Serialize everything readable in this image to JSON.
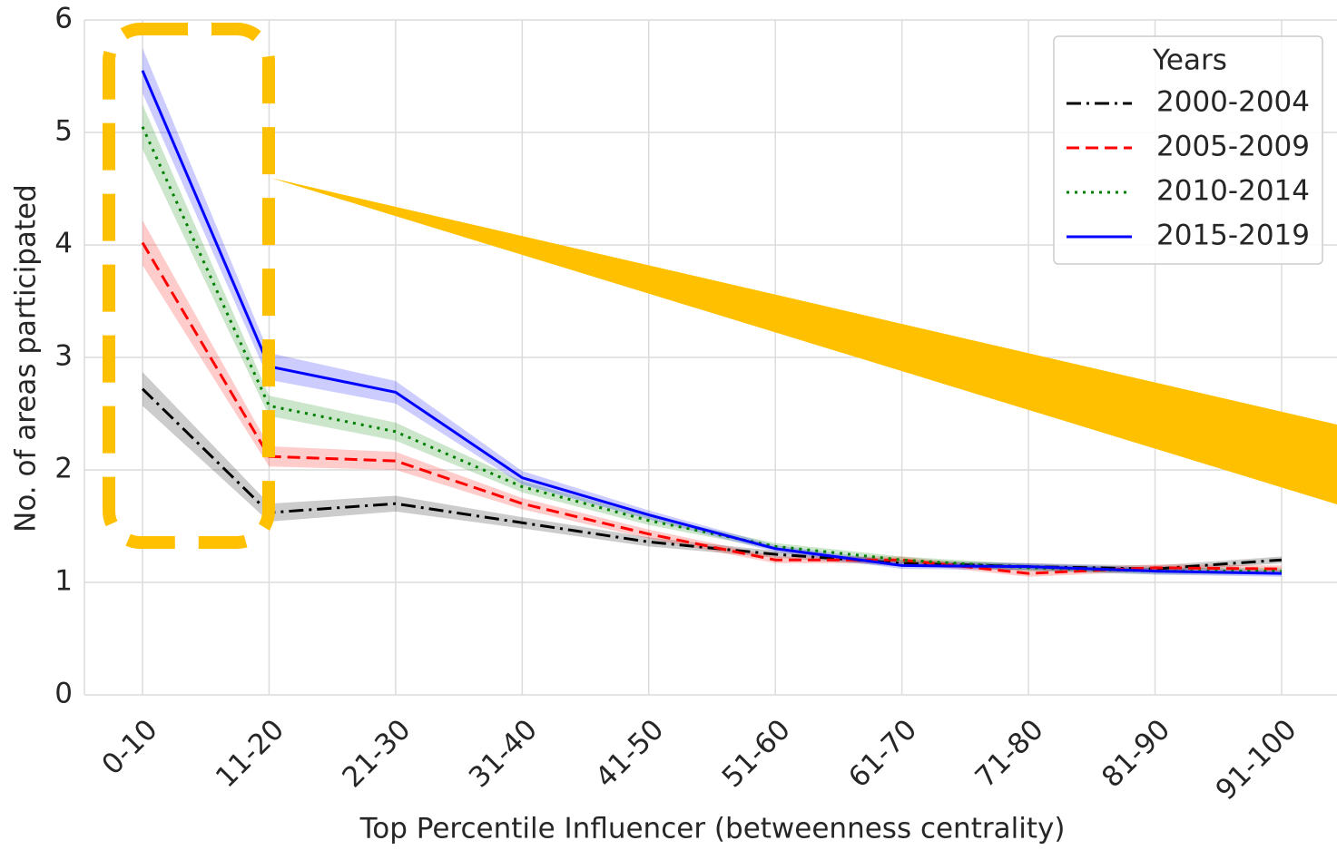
{
  "chart_data": {
    "type": "line",
    "x_label": "Top Percentile Influencer (betweenness centrality)",
    "y_label": "No. of areas participated",
    "categories": [
      "0-10",
      "11-20",
      "21-30",
      "31-40",
      "41-50",
      "51-60",
      "61-70",
      "71-80",
      "81-90",
      "91-100"
    ],
    "ylim": [
      0,
      6
    ],
    "yticks": [
      0,
      1,
      2,
      3,
      4,
      5,
      6
    ],
    "grid": true,
    "legend_title": "Years",
    "legend": "upper right",
    "series": [
      {
        "name": "2000-2004",
        "color": "#000000",
        "dash": "dashdot",
        "values": [
          2.72,
          1.62,
          1.7,
          1.53,
          1.36,
          1.25,
          1.17,
          1.14,
          1.12,
          1.2
        ],
        "errors": [
          0.15,
          0.08,
          0.07,
          0.05,
          0.04,
          0.03,
          0.03,
          0.03,
          0.03,
          0.03
        ]
      },
      {
        "name": "2005-2009",
        "color": "#ff0000",
        "dash": "dashed",
        "values": [
          4.02,
          2.12,
          2.08,
          1.7,
          1.43,
          1.2,
          1.2,
          1.08,
          1.13,
          1.12
        ],
        "errors": [
          0.2,
          0.09,
          0.08,
          0.05,
          0.04,
          0.03,
          0.03,
          0.03,
          0.03,
          0.03
        ]
      },
      {
        "name": "2010-2014",
        "color": "#008000",
        "dash": "dotted",
        "values": [
          5.05,
          2.57,
          2.34,
          1.85,
          1.55,
          1.32,
          1.2,
          1.13,
          1.1,
          1.1
        ],
        "errors": [
          0.2,
          0.09,
          0.08,
          0.05,
          0.04,
          0.03,
          0.03,
          0.03,
          0.03,
          0.03
        ]
      },
      {
        "name": "2015-2019",
        "color": "#0000ff",
        "dash": "solid",
        "values": [
          5.55,
          2.92,
          2.69,
          1.93,
          1.6,
          1.3,
          1.15,
          1.14,
          1.1,
          1.08
        ],
        "errors": [
          0.2,
          0.12,
          0.1,
          0.06,
          0.04,
          0.03,
          0.03,
          0.03,
          0.03,
          0.03
        ]
      }
    ]
  }
}
